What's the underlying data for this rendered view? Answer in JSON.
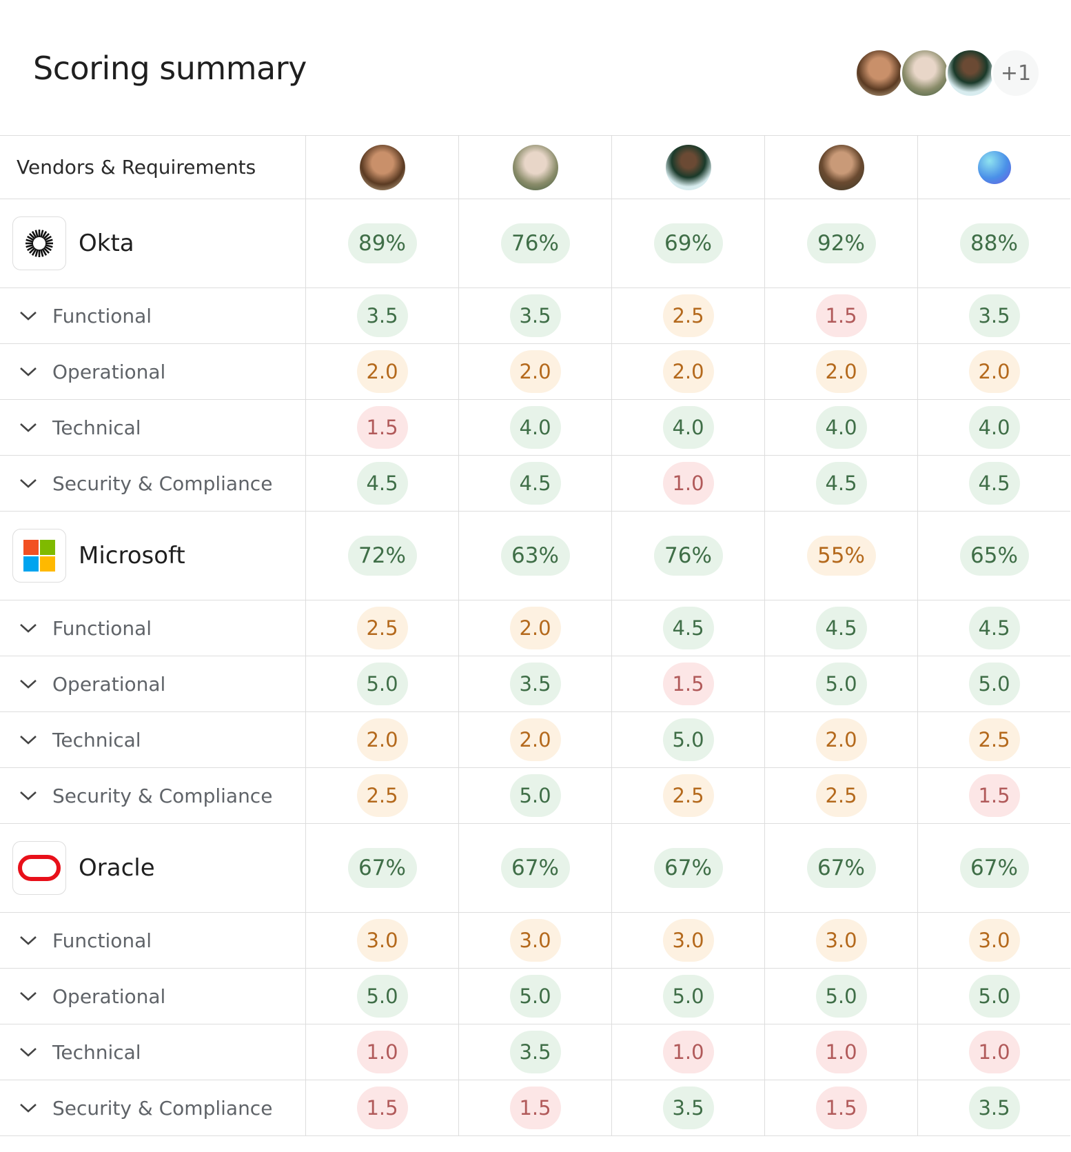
{
  "header": {
    "title": "Scoring summary",
    "extra_reviewers": "+1"
  },
  "table": {
    "first_column_header": "Vendors & Requirements",
    "vendors": [
      {
        "name": "Okta",
        "overall": [
          "89%",
          "76%",
          "69%",
          "92%",
          "88%"
        ],
        "requirements": [
          {
            "name": "Functional",
            "scores": [
              "3.5",
              "3.5",
              "2.5",
              "1.5",
              "3.5"
            ]
          },
          {
            "name": "Operational",
            "scores": [
              "2.0",
              "2.0",
              "2.0",
              "2.0",
              "2.0"
            ]
          },
          {
            "name": "Technical",
            "scores": [
              "1.5",
              "4.0",
              "4.0",
              "4.0",
              "4.0"
            ]
          },
          {
            "name": "Security & Compliance",
            "scores": [
              "4.5",
              "4.5",
              "1.0",
              "4.5",
              "4.5"
            ]
          }
        ]
      },
      {
        "name": "Microsoft",
        "overall": [
          "72%",
          "63%",
          "76%",
          "55%",
          "65%"
        ],
        "requirements": [
          {
            "name": "Functional",
            "scores": [
              "2.5",
              "2.0",
              "4.5",
              "4.5",
              "4.5"
            ]
          },
          {
            "name": "Operational",
            "scores": [
              "5.0",
              "3.5",
              "1.5",
              "5.0",
              "5.0"
            ]
          },
          {
            "name": "Technical",
            "scores": [
              "2.0",
              "2.0",
              "5.0",
              "2.0",
              "2.5"
            ]
          },
          {
            "name": "Security & Compliance",
            "scores": [
              "2.5",
              "5.0",
              "2.5",
              "2.5",
              "1.5"
            ]
          }
        ]
      },
      {
        "name": "Oracle",
        "overall": [
          "67%",
          "67%",
          "67%",
          "67%",
          "67%"
        ],
        "requirements": [
          {
            "name": "Functional",
            "scores": [
              "3.0",
              "3.0",
              "3.0",
              "3.0",
              "3.0"
            ]
          },
          {
            "name": "Operational",
            "scores": [
              "5.0",
              "5.0",
              "5.0",
              "5.0",
              "5.0"
            ]
          },
          {
            "name": "Technical",
            "scores": [
              "1.0",
              "3.5",
              "1.0",
              "1.0",
              "1.0"
            ]
          },
          {
            "name": "Security & Compliance",
            "scores": [
              "1.5",
              "1.5",
              "3.5",
              "1.5",
              "3.5"
            ]
          }
        ]
      }
    ]
  }
}
